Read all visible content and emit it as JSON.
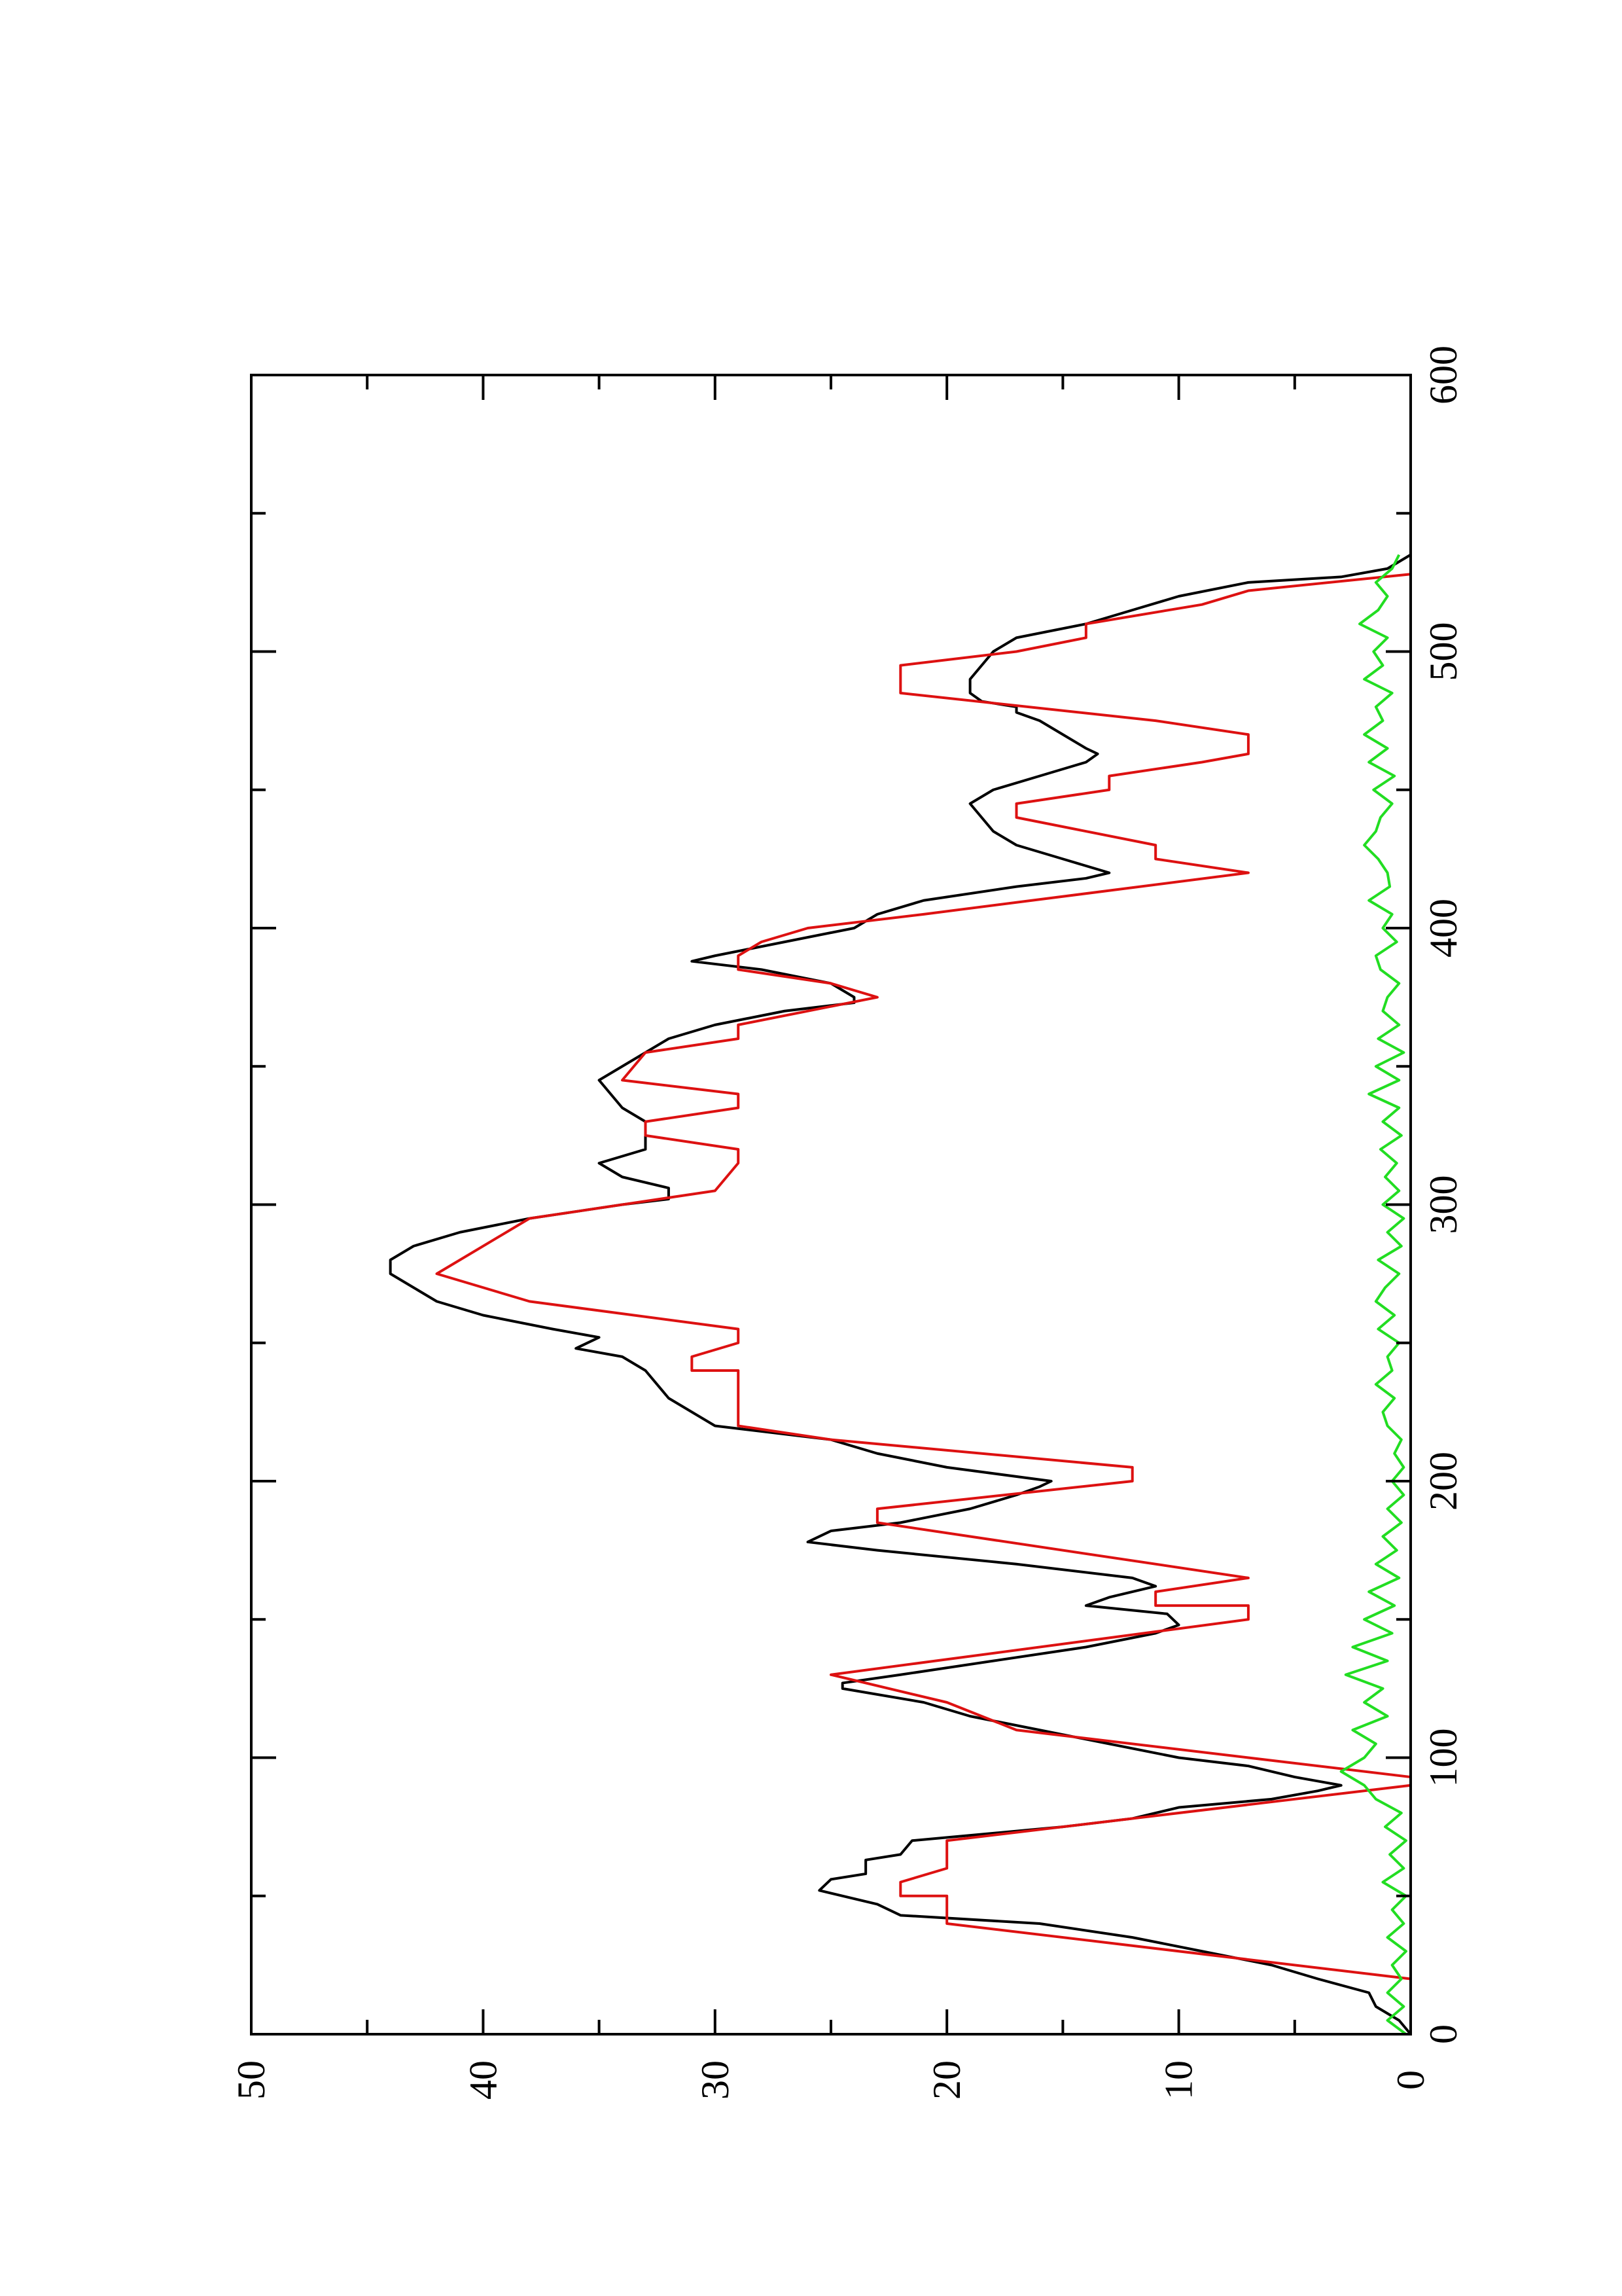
{
  "chart_data": {
    "type": "line",
    "title": "",
    "xlabel": "",
    "ylabel": "",
    "xlim": [
      0,
      600
    ],
    "ylim": [
      0,
      50
    ],
    "x_ticks": [
      0,
      100,
      200,
      300,
      400,
      500,
      600
    ],
    "y_ticks": [
      0,
      10,
      20,
      30,
      40,
      50
    ],
    "x_minor_ticks": [
      50,
      150,
      250,
      350,
      450,
      550
    ],
    "y_minor_ticks": [
      5,
      15,
      25,
      35,
      45
    ],
    "grid": false,
    "legend": "none",
    "orientation_note": "page rotated 90 degrees counter-clockwise",
    "series": [
      {
        "color": "#000000",
        "points": [
          [
            0,
            0
          ],
          [
            5,
            0.5
          ],
          [
            10,
            1.5
          ],
          [
            15,
            1.8
          ],
          [
            20,
            4
          ],
          [
            25,
            6
          ],
          [
            30,
            9
          ],
          [
            35,
            12
          ],
          [
            40,
            16
          ],
          [
            43,
            22
          ],
          [
            47,
            23
          ],
          [
            52,
            25.5
          ],
          [
            56,
            25
          ],
          [
            58,
            23.5
          ],
          [
            63,
            23.5
          ],
          [
            65,
            22
          ],
          [
            70,
            21.5
          ],
          [
            75,
            15
          ],
          [
            78,
            12
          ],
          [
            82,
            10
          ],
          [
            85,
            6
          ],
          [
            88,
            4
          ],
          [
            90,
            3
          ],
          [
            93,
            5
          ],
          [
            97,
            7
          ],
          [
            100,
            10
          ],
          [
            105,
            13
          ],
          [
            110,
            16
          ],
          [
            115,
            19
          ],
          [
            120,
            21
          ],
          [
            125,
            24.5
          ],
          [
            127,
            24.5
          ],
          [
            130,
            22
          ],
          [
            135,
            18
          ],
          [
            140,
            14
          ],
          [
            145,
            11
          ],
          [
            148,
            10
          ],
          [
            152,
            10.5
          ],
          [
            155,
            14
          ],
          [
            158,
            13
          ],
          [
            162,
            11
          ],
          [
            165,
            12
          ],
          [
            170,
            17
          ],
          [
            175,
            23
          ],
          [
            178,
            26
          ],
          [
            182,
            25
          ],
          [
            185,
            22
          ],
          [
            190,
            19
          ],
          [
            195,
            17
          ],
          [
            198,
            16
          ],
          [
            200,
            15.5
          ],
          [
            205,
            20
          ],
          [
            210,
            23
          ],
          [
            215,
            25
          ],
          [
            220,
            30
          ],
          [
            225,
            31
          ],
          [
            230,
            32
          ],
          [
            240,
            33
          ],
          [
            245,
            34
          ],
          [
            248,
            36
          ],
          [
            252,
            35
          ],
          [
            255,
            37
          ],
          [
            260,
            40
          ],
          [
            265,
            42
          ],
          [
            270,
            43
          ],
          [
            275,
            44
          ],
          [
            280,
            44
          ],
          [
            285,
            43
          ],
          [
            290,
            41
          ],
          [
            295,
            38
          ],
          [
            300,
            34
          ],
          [
            302,
            32
          ],
          [
            306,
            32
          ],
          [
            310,
            34
          ],
          [
            315,
            35
          ],
          [
            320,
            33
          ],
          [
            325,
            33
          ],
          [
            330,
            33
          ],
          [
            335,
            34
          ],
          [
            340,
            34.5
          ],
          [
            345,
            35
          ],
          [
            350,
            34
          ],
          [
            355,
            33
          ],
          [
            360,
            32
          ],
          [
            365,
            30
          ],
          [
            370,
            27
          ],
          [
            373,
            24
          ],
          [
            375,
            24
          ],
          [
            380,
            25
          ],
          [
            385,
            28
          ],
          [
            388,
            31
          ],
          [
            390,
            30
          ],
          [
            395,
            27
          ],
          [
            400,
            24
          ],
          [
            405,
            23
          ],
          [
            410,
            21
          ],
          [
            415,
            17
          ],
          [
            418,
            14
          ],
          [
            420,
            13
          ],
          [
            425,
            15
          ],
          [
            430,
            17
          ],
          [
            435,
            18
          ],
          [
            440,
            18.5
          ],
          [
            445,
            19
          ],
          [
            450,
            18
          ],
          [
            455,
            16
          ],
          [
            460,
            14
          ],
          [
            463,
            13.5
          ],
          [
            465,
            14
          ],
          [
            470,
            15
          ],
          [
            475,
            16
          ],
          [
            478,
            17
          ],
          [
            480,
            17
          ],
          [
            482,
            18.5
          ],
          [
            485,
            19
          ],
          [
            490,
            19
          ],
          [
            495,
            18.5
          ],
          [
            500,
            18
          ],
          [
            505,
            17
          ],
          [
            510,
            14
          ],
          [
            515,
            12
          ],
          [
            520,
            10
          ],
          [
            525,
            7
          ],
          [
            527,
            3
          ],
          [
            530,
            1
          ],
          [
            535,
            0
          ]
        ]
      },
      {
        "color": "#dd1111",
        "points": [
          [
            0,
            0
          ],
          [
            20,
            0
          ],
          [
            40,
            20
          ],
          [
            50,
            20
          ],
          [
            50,
            22
          ],
          [
            55,
            22
          ],
          [
            60,
            20
          ],
          [
            70,
            20
          ],
          [
            90,
            0
          ],
          [
            93,
            0
          ],
          [
            100,
            7
          ],
          [
            110,
            17
          ],
          [
            120,
            20
          ],
          [
            130,
            25
          ],
          [
            150,
            7
          ],
          [
            155,
            7
          ],
          [
            155,
            11
          ],
          [
            160,
            11
          ],
          [
            165,
            7
          ],
          [
            185,
            23
          ],
          [
            190,
            23
          ],
          [
            200,
            12
          ],
          [
            205,
            12
          ],
          [
            215,
            25
          ],
          [
            220,
            29
          ],
          [
            240,
            29
          ],
          [
            240,
            31
          ],
          [
            245,
            31
          ],
          [
            250,
            29
          ],
          [
            255,
            29
          ],
          [
            265,
            38
          ],
          [
            275,
            42
          ],
          [
            295,
            38
          ],
          [
            305,
            30
          ],
          [
            315,
            29
          ],
          [
            320,
            29
          ],
          [
            325,
            33
          ],
          [
            330,
            33
          ],
          [
            335,
            29
          ],
          [
            340,
            29
          ],
          [
            345,
            34
          ],
          [
            355,
            33
          ],
          [
            360,
            29
          ],
          [
            365,
            29
          ],
          [
            375,
            23
          ],
          [
            380,
            25
          ],
          [
            385,
            29
          ],
          [
            390,
            29
          ],
          [
            395,
            28
          ],
          [
            400,
            26
          ],
          [
            405,
            21
          ],
          [
            420,
            7
          ],
          [
            425,
            11
          ],
          [
            430,
            11
          ],
          [
            440,
            17
          ],
          [
            445,
            17
          ],
          [
            450,
            13
          ],
          [
            455,
            13
          ],
          [
            460,
            9
          ],
          [
            463,
            7
          ],
          [
            470,
            7
          ],
          [
            475,
            11
          ],
          [
            485,
            22
          ],
          [
            495,
            22
          ],
          [
            500,
            17
          ],
          [
            505,
            14
          ],
          [
            510,
            14
          ],
          [
            517,
            9
          ],
          [
            522,
            7
          ],
          [
            528,
            0
          ]
        ]
      },
      {
        "color": "#22dd22",
        "points": [
          [
            0,
            0.2
          ],
          [
            5,
            1
          ],
          [
            10,
            0.3
          ],
          [
            15,
            1
          ],
          [
            20,
            0.4
          ],
          [
            25,
            0.8
          ],
          [
            30,
            0.2
          ],
          [
            35,
            1
          ],
          [
            40,
            0.3
          ],
          [
            45,
            0.8
          ],
          [
            50,
            0.2
          ],
          [
            55,
            1.2
          ],
          [
            60,
            0.3
          ],
          [
            65,
            0.9
          ],
          [
            70,
            0.2
          ],
          [
            75,
            1.1
          ],
          [
            80,
            0.4
          ],
          [
            85,
            1.5
          ],
          [
            90,
            2
          ],
          [
            95,
            3
          ],
          [
            100,
            2
          ],
          [
            105,
            1.5
          ],
          [
            110,
            2.5
          ],
          [
            115,
            1
          ],
          [
            120,
            2
          ],
          [
            125,
            1.2
          ],
          [
            130,
            2.8
          ],
          [
            135,
            1
          ],
          [
            140,
            2.5
          ],
          [
            145,
            0.8
          ],
          [
            150,
            2
          ],
          [
            155,
            0.7
          ],
          [
            160,
            1.8
          ],
          [
            165,
            0.5
          ],
          [
            170,
            1.5
          ],
          [
            175,
            0.6
          ],
          [
            180,
            1.2
          ],
          [
            185,
            0.4
          ],
          [
            190,
            1
          ],
          [
            195,
            0.3
          ],
          [
            200,
            0.8
          ],
          [
            205,
            0.3
          ],
          [
            210,
            0.7
          ],
          [
            215,
            0.4
          ],
          [
            220,
            1
          ],
          [
            225,
            1.2
          ],
          [
            230,
            0.7
          ],
          [
            235,
            1.5
          ],
          [
            240,
            0.8
          ],
          [
            245,
            1
          ],
          [
            250,
            0.5
          ],
          [
            255,
            1.4
          ],
          [
            260,
            0.7
          ],
          [
            265,
            1.5
          ],
          [
            270,
            1.1
          ],
          [
            275,
            0.5
          ],
          [
            280,
            1.4
          ],
          [
            285,
            0.4
          ],
          [
            290,
            1
          ],
          [
            295,
            0.3
          ],
          [
            300,
            1.2
          ],
          [
            305,
            0.5
          ],
          [
            310,
            1.1
          ],
          [
            315,
            0.6
          ],
          [
            320,
            1.3
          ],
          [
            325,
            0.4
          ],
          [
            330,
            1.2
          ],
          [
            335,
            0.5
          ],
          [
            340,
            1.8
          ],
          [
            345,
            0.5
          ],
          [
            350,
            1.5
          ],
          [
            355,
            0.3
          ],
          [
            360,
            1.4
          ],
          [
            365,
            0.5
          ],
          [
            370,
            1.2
          ],
          [
            375,
            1
          ],
          [
            380,
            0.5
          ],
          [
            385,
            1.3
          ],
          [
            390,
            1.5
          ],
          [
            395,
            0.6
          ],
          [
            400,
            1.2
          ],
          [
            405,
            0.8
          ],
          [
            410,
            1.8
          ],
          [
            415,
            0.9
          ],
          [
            420,
            1
          ],
          [
            425,
            1.4
          ],
          [
            430,
            2
          ],
          [
            435,
            1.5
          ],
          [
            440,
            1.3
          ],
          [
            445,
            0.8
          ],
          [
            450,
            1.6
          ],
          [
            455,
            0.7
          ],
          [
            460,
            1.8
          ],
          [
            465,
            1
          ],
          [
            470,
            2
          ],
          [
            475,
            1.2
          ],
          [
            480,
            1.5
          ],
          [
            485,
            0.8
          ],
          [
            490,
            2
          ],
          [
            495,
            1.2
          ],
          [
            500,
            1.6
          ],
          [
            505,
            1
          ],
          [
            510,
            2.2
          ],
          [
            515,
            1.4
          ],
          [
            520,
            1
          ],
          [
            525,
            1.5
          ],
          [
            530,
            0.8
          ],
          [
            535,
            0.5
          ]
        ]
      }
    ]
  }
}
